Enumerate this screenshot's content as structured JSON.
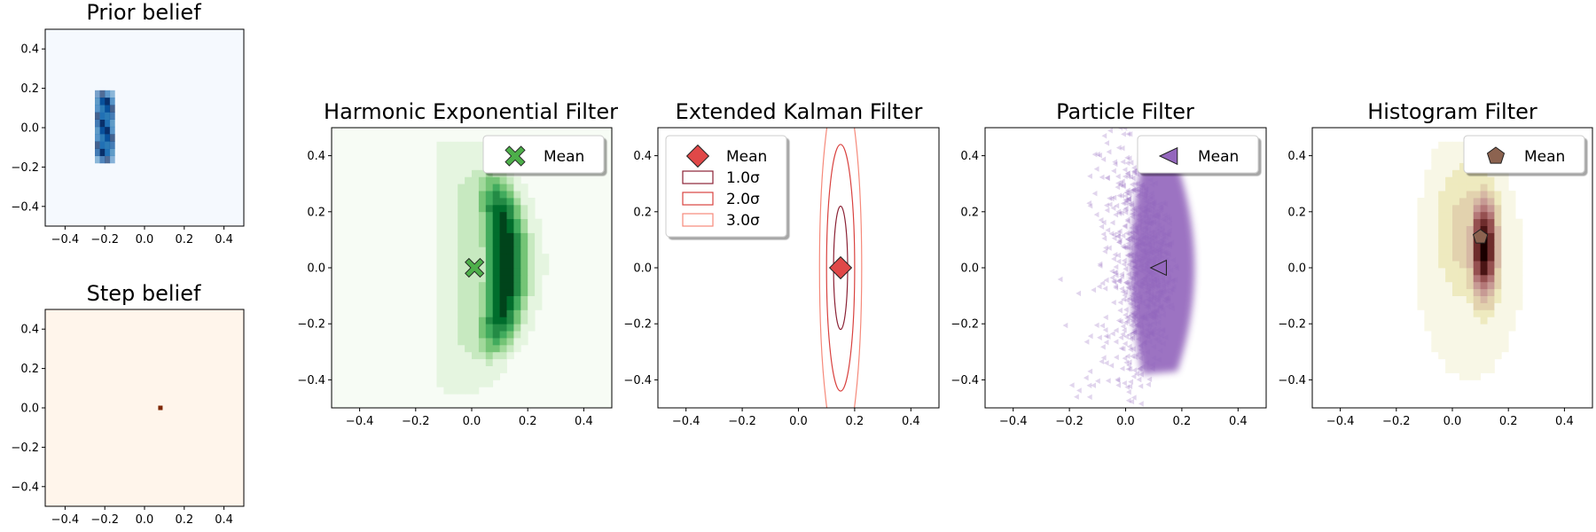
{
  "colors": {
    "prior_cmap": "#08306b",
    "step_cmap": "#7f2704",
    "hef_cmap": "#00441b",
    "hef_marker": "#4daf4a",
    "ekf_marker": "#e04848",
    "ekf_ellipses": [
      "#8b2235",
      "#d9423f",
      "#f6897a"
    ],
    "pf_marker": "#9467bd",
    "hist_marker": "#8c6350"
  },
  "chart_data": [
    {
      "id": "prior",
      "type": "heatmap",
      "title": "Prior belief",
      "xlim": [
        -0.5,
        0.5
      ],
      "ylim": [
        -0.5,
        0.5
      ],
      "xticks": [
        "−0.4",
        "−0.2",
        "0.0",
        "0.2",
        "0.4"
      ],
      "yticks": [
        "−0.4",
        "−0.2",
        "0.0",
        "0.2",
        "0.4"
      ],
      "colormap": "Blues",
      "region": {
        "x": [
          -0.25,
          -0.15
        ],
        "y": [
          -0.18,
          0.19
        ]
      },
      "legend": null
    },
    {
      "id": "step",
      "type": "heatmap",
      "title": "Step belief",
      "xlim": [
        -0.5,
        0.5
      ],
      "ylim": [
        -0.5,
        0.5
      ],
      "xticks": [
        "−0.4",
        "−0.2",
        "0.0",
        "0.2",
        "0.4"
      ],
      "yticks": [
        "−0.4",
        "−0.2",
        "0.0",
        "0.2",
        "0.4"
      ],
      "colormap": "Oranges",
      "point": [
        0.08,
        0.0
      ],
      "legend": null
    },
    {
      "id": "hef",
      "type": "heatmap",
      "title": "Harmonic Exponential Filter",
      "xlim": [
        -0.5,
        0.5
      ],
      "ylim": [
        -0.5,
        0.5
      ],
      "xticks": [
        "−0.4",
        "−0.2",
        "0.0",
        "0.2",
        "0.4"
      ],
      "yticks": [
        "−0.4",
        "−0.2",
        "0.0",
        "0.2",
        "0.4"
      ],
      "colormap": "Greens",
      "mean": [
        0.01,
        0.0
      ],
      "legend": {
        "entries": [
          {
            "label": "Mean",
            "marker": "X"
          }
        ],
        "placement": "upper right"
      }
    },
    {
      "id": "ekf",
      "type": "scatter",
      "title": "Extended Kalman Filter",
      "xlim": [
        -0.5,
        0.5
      ],
      "ylim": [
        -0.5,
        0.5
      ],
      "xticks": [
        "−0.4",
        "−0.2",
        "0.0",
        "0.2",
        "0.4"
      ],
      "yticks": [
        "−0.4",
        "−0.2",
        "0.0",
        "0.2",
        "0.4"
      ],
      "mean": [
        0.15,
        0.0
      ],
      "sigma": [
        0.025,
        0.22
      ],
      "ellipses": [
        1,
        2,
        3
      ],
      "legend": {
        "entries": [
          {
            "label": "Mean",
            "marker": "diamond"
          },
          {
            "label": "1.0σ",
            "marker": "rect"
          },
          {
            "label": "2.0σ",
            "marker": "rect"
          },
          {
            "label": "3.0σ",
            "marker": "rect"
          }
        ],
        "placement": "upper left"
      }
    },
    {
      "id": "pf",
      "type": "scatter",
      "title": "Particle Filter",
      "xlim": [
        -0.5,
        0.5
      ],
      "ylim": [
        -0.5,
        0.5
      ],
      "xticks": [
        "−0.4",
        "−0.2",
        "0.0",
        "0.2",
        "0.4"
      ],
      "yticks": [
        "−0.4",
        "−0.2",
        "0.0",
        "0.2",
        "0.4"
      ],
      "mean": [
        0.12,
        0.0
      ],
      "legend": {
        "entries": [
          {
            "label": "Mean",
            "marker": "triangle-left"
          }
        ],
        "placement": "upper right"
      }
    },
    {
      "id": "hist",
      "type": "heatmap",
      "title": "Histogram Filter",
      "xlim": [
        -0.5,
        0.5
      ],
      "ylim": [
        -0.5,
        0.5
      ],
      "xticks": [
        "−0.4",
        "−0.2",
        "0.0",
        "0.2",
        "0.4"
      ],
      "yticks": [
        "−0.4",
        "−0.2",
        "0.0",
        "0.2",
        "0.4"
      ],
      "colormap": "pink_r",
      "mean": [
        0.1,
        0.11
      ],
      "legend": {
        "entries": [
          {
            "label": "Mean",
            "marker": "pentagon"
          }
        ],
        "placement": "upper right"
      }
    }
  ]
}
